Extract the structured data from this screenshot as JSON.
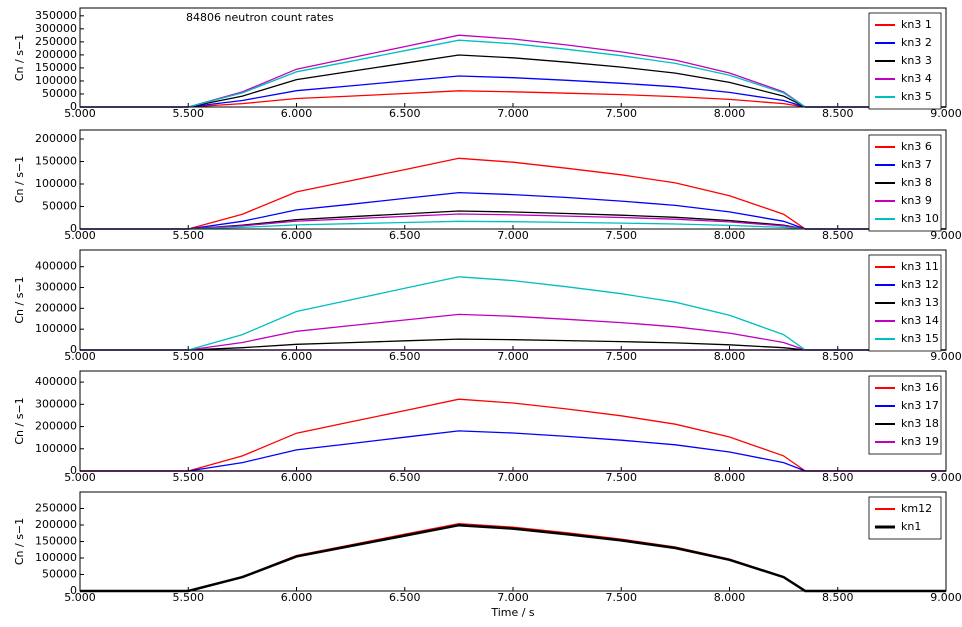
{
  "chart_data": [
    {
      "type": "line",
      "title": "84806 neutron count rates",
      "ylabel": "Cn / s−1",
      "legend": "upper right",
      "xlim": [
        5,
        9
      ],
      "xticks": [
        {
          "value": 5,
          "label": "5.000"
        },
        {
          "value": 5.5,
          "label": "5.500"
        },
        {
          "value": 6,
          "label": "6.000"
        },
        {
          "value": 6.5,
          "label": "6.500"
        },
        {
          "value": 7,
          "label": "7.000"
        },
        {
          "value": 7.5,
          "label": "7.500"
        },
        {
          "value": 8,
          "label": "8.000"
        },
        {
          "value": 8.5,
          "label": "8.500"
        },
        {
          "value": 9,
          "label": "9.000"
        }
      ],
      "ylim": [
        0,
        380000
      ],
      "yticks": [
        0,
        50000,
        100000,
        150000,
        200000,
        250000,
        300000,
        350000
      ],
      "x": [
        5.0,
        5.5,
        5.75,
        6.0,
        6.25,
        6.5,
        6.75,
        7.0,
        7.25,
        7.5,
        7.75,
        8.0,
        8.25,
        8.35,
        8.5,
        9.0
      ],
      "series": [
        {
          "name": "kn3 1",
          "color": "#ff0000",
          "values": [
            0,
            0,
            13000,
            32500,
            42000,
            52000,
            62000,
            58500,
            53000,
            47500,
            40000,
            29000,
            13000,
            0,
            0,
            0
          ]
        },
        {
          "name": "kn3 2",
          "color": "#0000ff",
          "values": [
            0,
            0,
            25000,
            62500,
            81000,
            100000,
            119000,
            112500,
            102500,
            91000,
            77500,
            56000,
            25000,
            0,
            0,
            0
          ]
        },
        {
          "name": "kn3 3",
          "color": "#000000",
          "values": [
            0,
            0,
            42000,
            105000,
            136500,
            168000,
            199500,
            189000,
            172000,
            153000,
            130000,
            94500,
            42000,
            0,
            0,
            0
          ]
        },
        {
          "name": "kn3 4",
          "color": "#bf00bf",
          "values": [
            0,
            0,
            58000,
            145000,
            188500,
            232000,
            275500,
            261000,
            238000,
            211500,
            180000,
            130500,
            58000,
            0,
            0,
            0
          ]
        },
        {
          "name": "kn3 5",
          "color": "#00bfbf",
          "values": [
            0,
            0,
            54000,
            135000,
            175500,
            216000,
            256500,
            243000,
            221500,
            197000,
            167500,
            121500,
            54000,
            0,
            0,
            0
          ]
        }
      ]
    },
    {
      "type": "line",
      "ylabel": "Cn / s−1",
      "legend": "upper right",
      "xlim": [
        5,
        9
      ],
      "xticks": [
        {
          "value": 5,
          "label": "5.000"
        },
        {
          "value": 5.5,
          "label": "5.500"
        },
        {
          "value": 6,
          "label": "6.000"
        },
        {
          "value": 6.5,
          "label": "6.500"
        },
        {
          "value": 7,
          "label": "7.000"
        },
        {
          "value": 7.5,
          "label": "7.500"
        },
        {
          "value": 8,
          "label": "8.000"
        },
        {
          "value": 8.5,
          "label": "8.500"
        },
        {
          "value": 9,
          "label": "9.000"
        }
      ],
      "ylim": [
        0,
        220000
      ],
      "yticks": [
        0,
        50000,
        100000,
        150000,
        200000
      ],
      "x": [
        5.0,
        5.5,
        5.75,
        6.0,
        6.25,
        6.5,
        6.75,
        7.0,
        7.25,
        7.5,
        7.75,
        8.0,
        8.25,
        8.35,
        8.5,
        9.0
      ],
      "series": [
        {
          "name": "kn3 6",
          "color": "#ff0000",
          "values": [
            0,
            0,
            33000,
            82500,
            107000,
            132000,
            157000,
            148500,
            135000,
            120500,
            102500,
            74000,
            33000,
            0,
            0,
            0
          ]
        },
        {
          "name": "kn3 7",
          "color": "#0000ff",
          "values": [
            0,
            0,
            17000,
            42500,
            55000,
            68000,
            81000,
            76500,
            70000,
            62000,
            52500,
            38000,
            17000,
            0,
            0,
            0
          ]
        },
        {
          "name": "kn3 8",
          "color": "#000000",
          "values": [
            0,
            0,
            8400,
            21000,
            27300,
            33600,
            39900,
            37800,
            34400,
            30700,
            26000,
            18900,
            8400,
            0,
            0,
            0
          ]
        },
        {
          "name": "kn3 9",
          "color": "#bf00bf",
          "values": [
            0,
            0,
            7000,
            17500,
            22750,
            28000,
            33250,
            31500,
            28700,
            25550,
            21700,
            15750,
            7000,
            0,
            0,
            0
          ]
        },
        {
          "name": "kn3 10",
          "color": "#00bfbf",
          "values": [
            0,
            0,
            3600,
            9000,
            11700,
            14400,
            17100,
            16200,
            14760,
            13140,
            11160,
            8100,
            3600,
            0,
            0,
            0
          ]
        }
      ]
    },
    {
      "type": "line",
      "ylabel": "Cn / s−1",
      "legend": "upper right",
      "xlim": [
        5,
        9
      ],
      "xticks": [
        {
          "value": 5,
          "label": "5.000"
        },
        {
          "value": 5.5,
          "label": "5.500"
        },
        {
          "value": 6,
          "label": "6.000"
        },
        {
          "value": 6.5,
          "label": "6.500"
        },
        {
          "value": 7,
          "label": "7.000"
        },
        {
          "value": 7.5,
          "label": "7.500"
        },
        {
          "value": 8,
          "label": "8.000"
        },
        {
          "value": 8.5,
          "label": "8.500"
        },
        {
          "value": 9,
          "label": "9.000"
        }
      ],
      "ylim": [
        0,
        480000
      ],
      "yticks": [
        0,
        100000,
        200000,
        300000,
        400000
      ],
      "x": [
        5.0,
        5.5,
        5.75,
        6.0,
        6.25,
        6.5,
        6.75,
        7.0,
        7.25,
        7.5,
        7.75,
        8.0,
        8.25,
        8.35,
        8.5,
        9.0
      ],
      "series": [
        {
          "name": "kn3 11",
          "color": "#ff0000",
          "values": [
            0,
            0,
            0,
            0,
            0,
            0,
            0,
            0,
            0,
            0,
            0,
            0,
            0,
            0,
            0,
            0
          ]
        },
        {
          "name": "kn3 12",
          "color": "#0000ff",
          "values": [
            0,
            0,
            0,
            0,
            0,
            0,
            0,
            0,
            0,
            0,
            0,
            0,
            0,
            0,
            0,
            0
          ]
        },
        {
          "name": "kn3 13",
          "color": "#000000",
          "values": [
            0,
            0,
            11000,
            27500,
            35750,
            44000,
            52250,
            49500,
            45100,
            40150,
            34100,
            24750,
            11000,
            0,
            0,
            0
          ]
        },
        {
          "name": "kn3 14",
          "color": "#bf00bf",
          "values": [
            0,
            0,
            36000,
            90000,
            117000,
            144000,
            171000,
            162000,
            147600,
            131400,
            111600,
            81000,
            36000,
            0,
            0,
            0
          ]
        },
        {
          "name": "kn3 15",
          "color": "#00bfbf",
          "values": [
            0,
            0,
            74000,
            185000,
            240500,
            296000,
            351500,
            333000,
            303400,
            270100,
            229400,
            166500,
            74000,
            0,
            0,
            0
          ]
        }
      ]
    },
    {
      "type": "line",
      "ylabel": "Cn / s−1",
      "legend": "upper right",
      "xlim": [
        5,
        9
      ],
      "xticks": [
        {
          "value": 5,
          "label": "5.000"
        },
        {
          "value": 5.5,
          "label": "5.500"
        },
        {
          "value": 6,
          "label": "6.000"
        },
        {
          "value": 6.5,
          "label": "6.500"
        },
        {
          "value": 7,
          "label": "7.000"
        },
        {
          "value": 7.5,
          "label": "7.500"
        },
        {
          "value": 8,
          "label": "8.000"
        },
        {
          "value": 8.5,
          "label": "8.500"
        },
        {
          "value": 9,
          "label": "9.000"
        }
      ],
      "ylim": [
        0,
        450000
      ],
      "yticks": [
        0,
        100000,
        200000,
        300000,
        400000
      ],
      "x": [
        5.0,
        5.5,
        5.75,
        6.0,
        6.25,
        6.5,
        6.75,
        7.0,
        7.25,
        7.5,
        7.75,
        8.0,
        8.25,
        8.35,
        8.5,
        9.0
      ],
      "series": [
        {
          "name": "kn3 16",
          "color": "#ff0000",
          "values": [
            0,
            0,
            68000,
            170000,
            221000,
            272000,
            323000,
            306000,
            278800,
            248200,
            210800,
            153000,
            68000,
            0,
            0,
            0
          ]
        },
        {
          "name": "kn3 17",
          "color": "#0000ff",
          "values": [
            0,
            0,
            38000,
            95000,
            123500,
            152000,
            180500,
            171000,
            155800,
            138700,
            117800,
            85500,
            38000,
            0,
            0,
            0
          ]
        },
        {
          "name": "kn3 18",
          "color": "#000000",
          "values": [
            0,
            0,
            0,
            0,
            0,
            0,
            0,
            0,
            0,
            0,
            0,
            0,
            0,
            0,
            0,
            0
          ]
        },
        {
          "name": "kn3 19",
          "color": "#bf00bf",
          "values": [
            0,
            0,
            0,
            0,
            0,
            0,
            0,
            0,
            0,
            0,
            0,
            0,
            0,
            0,
            0,
            0
          ]
        }
      ]
    },
    {
      "type": "line",
      "ylabel": "Cn / s−1",
      "xlabel": "Time / s",
      "legend": "upper right",
      "xlim": [
        5,
        9
      ],
      "xticks": [
        {
          "value": 5,
          "label": "5.000"
        },
        {
          "value": 5.5,
          "label": "5.500"
        },
        {
          "value": 6,
          "label": "6.000"
        },
        {
          "value": 6.5,
          "label": "6.500"
        },
        {
          "value": 7,
          "label": "7.000"
        },
        {
          "value": 7.5,
          "label": "7.500"
        },
        {
          "value": 8,
          "label": "8.000"
        },
        {
          "value": 8.5,
          "label": "8.500"
        },
        {
          "value": 9,
          "label": "9.000"
        }
      ],
      "ylim": [
        0,
        300000
      ],
      "yticks": [
        0,
        50000,
        100000,
        150000,
        200000,
        250000
      ],
      "x": [
        5.0,
        5.5,
        5.75,
        6.0,
        6.25,
        6.5,
        6.75,
        7.0,
        7.25,
        7.5,
        7.75,
        8.0,
        8.25,
        8.35,
        8.5,
        9.0
      ],
      "series": [
        {
          "name": "km12",
          "color": "#ff0000",
          "values": [
            0,
            0,
            43000,
            107500,
            139750,
            172000,
            204250,
            193500,
            176300,
            156950,
            133300,
            96750,
            43000,
            0,
            0,
            0
          ]
        },
        {
          "name": "kn1",
          "color": "#000000",
          "values": [
            0,
            0,
            42000,
            105000,
            136500,
            168000,
            199500,
            189000,
            172200,
            153300,
            130200,
            94500,
            42000,
            0,
            0,
            0
          ]
        }
      ]
    }
  ]
}
